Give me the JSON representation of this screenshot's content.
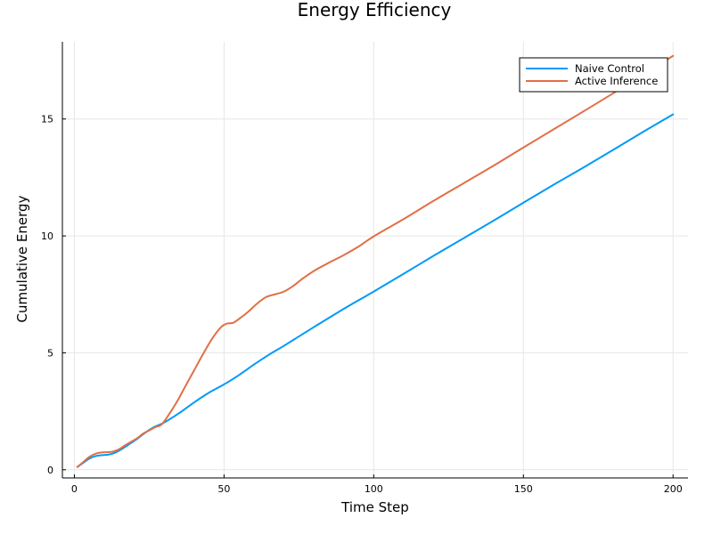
{
  "chart_data": {
    "type": "line",
    "title": "Energy Efficiency",
    "xlabel": "Time Step",
    "ylabel": "Cumulative Energy",
    "xlim": [
      -4,
      205
    ],
    "ylim": [
      -0.35,
      18.3
    ],
    "xticks": [
      0,
      50,
      100,
      150,
      200
    ],
    "yticks": [
      0,
      5,
      10,
      15
    ],
    "xtick_labels": [
      "0",
      "50",
      "100",
      "150",
      "200"
    ],
    "ytick_labels": [
      "0",
      "5",
      "10",
      "15"
    ],
    "grid": true,
    "legend": "top-right",
    "series": [
      {
        "name": "Naive Control",
        "color": "#009af9",
        "points": [
          [
            1,
            0.12
          ],
          [
            3,
            0.3
          ],
          [
            5,
            0.48
          ],
          [
            7,
            0.58
          ],
          [
            9,
            0.62
          ],
          [
            11,
            0.64
          ],
          [
            13,
            0.7
          ],
          [
            15,
            0.82
          ],
          [
            17,
            0.98
          ],
          [
            19,
            1.15
          ],
          [
            21,
            1.32
          ],
          [
            23,
            1.52
          ],
          [
            25,
            1.7
          ],
          [
            27,
            1.85
          ],
          [
            30,
            2.02
          ],
          [
            35,
            2.42
          ],
          [
            40,
            2.88
          ],
          [
            45,
            3.3
          ],
          [
            50,
            3.65
          ],
          [
            55,
            4.05
          ],
          [
            60,
            4.5
          ],
          [
            65,
            4.92
          ],
          [
            70,
            5.3
          ],
          [
            75,
            5.7
          ],
          [
            80,
            6.1
          ],
          [
            90,
            6.88
          ],
          [
            100,
            7.62
          ],
          [
            110,
            8.38
          ],
          [
            120,
            9.15
          ],
          [
            130,
            9.9
          ],
          [
            140,
            10.65
          ],
          [
            150,
            11.42
          ],
          [
            160,
            12.18
          ],
          [
            170,
            12.92
          ],
          [
            180,
            13.68
          ],
          [
            190,
            14.45
          ],
          [
            200,
            15.2
          ]
        ]
      },
      {
        "name": "Active Inference",
        "color": "#e26f46",
        "points": [
          [
            1,
            0.12
          ],
          [
            3,
            0.33
          ],
          [
            5,
            0.55
          ],
          [
            7,
            0.68
          ],
          [
            9,
            0.74
          ],
          [
            11,
            0.75
          ],
          [
            13,
            0.78
          ],
          [
            15,
            0.88
          ],
          [
            17,
            1.05
          ],
          [
            19,
            1.2
          ],
          [
            21,
            1.35
          ],
          [
            23,
            1.55
          ],
          [
            25,
            1.68
          ],
          [
            27,
            1.82
          ],
          [
            29,
            1.92
          ],
          [
            31,
            2.25
          ],
          [
            34,
            2.85
          ],
          [
            37,
            3.55
          ],
          [
            40,
            4.25
          ],
          [
            43,
            4.95
          ],
          [
            46,
            5.6
          ],
          [
            49,
            6.1
          ],
          [
            51,
            6.25
          ],
          [
            53,
            6.28
          ],
          [
            55,
            6.45
          ],
          [
            58,
            6.75
          ],
          [
            61,
            7.1
          ],
          [
            64,
            7.38
          ],
          [
            67,
            7.5
          ],
          [
            70,
            7.62
          ],
          [
            73,
            7.85
          ],
          [
            76,
            8.15
          ],
          [
            80,
            8.5
          ],
          [
            85,
            8.85
          ],
          [
            90,
            9.18
          ],
          [
            95,
            9.55
          ],
          [
            100,
            9.98
          ],
          [
            110,
            10.72
          ],
          [
            120,
            11.5
          ],
          [
            130,
            12.25
          ],
          [
            140,
            13.0
          ],
          [
            150,
            13.78
          ],
          [
            160,
            14.55
          ],
          [
            170,
            15.32
          ],
          [
            180,
            16.1
          ],
          [
            190,
            16.9
          ],
          [
            200,
            17.7
          ]
        ]
      }
    ]
  }
}
